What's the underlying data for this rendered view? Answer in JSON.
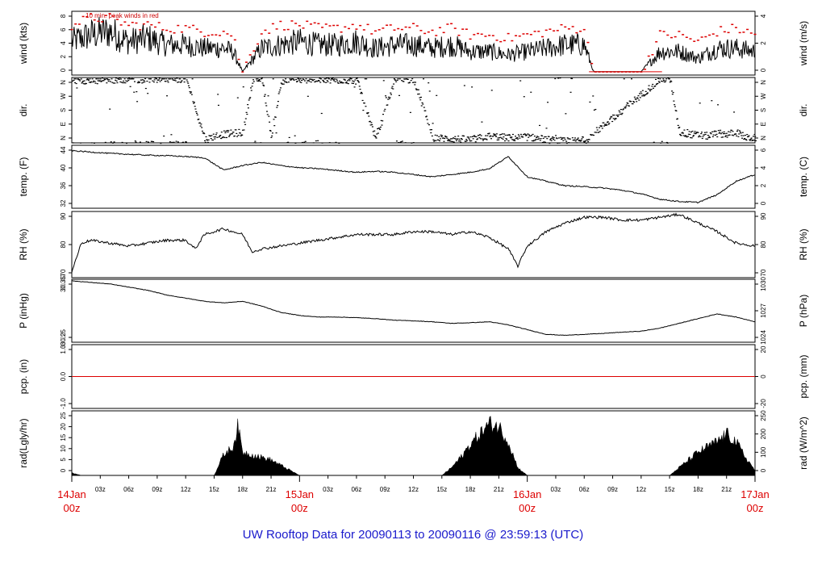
{
  "footer": {
    "text": "UW Rooftop Data for 20090113  to  20090116 @ 23:59:13  (UTC)",
    "color": "#1a1acc"
  },
  "colors": {
    "series": "#000000",
    "peak": "#dd0000",
    "zero_line": "#dd0000",
    "day_labels": "#dd0000"
  },
  "chart_data": [
    {
      "type": "line",
      "panel": "wind",
      "ylabel_left": "wind (kts)",
      "ylabel_right": "wind (m/s)",
      "annotation": "10 min. peak winds in red",
      "ylim": [
        -0.5,
        9
      ],
      "left_ticks": [
        "0",
        "2",
        "4",
        "6",
        "8"
      ],
      "right_ticks": [
        "0",
        "2",
        "4"
      ],
      "x_hours": [
        0,
        2,
        4,
        6,
        8,
        10,
        12,
        14,
        16,
        17,
        18,
        20,
        22,
        24,
        26,
        28,
        30,
        32,
        34,
        36,
        38,
        40,
        42,
        44,
        46,
        48,
        50,
        52,
        54,
        55,
        56,
        58,
        60,
        62,
        64,
        66,
        68,
        70,
        72
      ],
      "series": [
        {
          "values": [
            4.5,
            5.5,
            6,
            4.5,
            5,
            4,
            4,
            3.5,
            3.5,
            3,
            0,
            3.5,
            4,
            4.5,
            4,
            4,
            4.5,
            3.5,
            4,
            4,
            3.5,
            4,
            3,
            3,
            2.5,
            3,
            3.5,
            4,
            4,
            0,
            0,
            0,
            0,
            3,
            3,
            2,
            3.5,
            3.5,
            3
          ]
        },
        {
          "name": "10 min. peak",
          "values": [
            7,
            8,
            8,
            7,
            7,
            6.5,
            6.5,
            6,
            6,
            5.5,
            0,
            6,
            7,
            7,
            6.5,
            6.5,
            7,
            6,
            6.5,
            6.5,
            6,
            6.5,
            5.5,
            5.5,
            5,
            5.5,
            6,
            6.5,
            6.5,
            0,
            0,
            0,
            0,
            5.5,
            5.5,
            4.5,
            6,
            6.5,
            5.5
          ]
        }
      ]
    },
    {
      "type": "scatter",
      "panel": "dir",
      "ylabel_left": "dir.",
      "ylabel_right": "dir.",
      "left_ticks": [
        "N",
        "E",
        "S",
        "W",
        "N"
      ],
      "right_ticks": [
        "N",
        "E",
        "S",
        "W",
        "N"
      ],
      "ylim": [
        0,
        360
      ],
      "x_hours": [
        0,
        2,
        4,
        6,
        8,
        10,
        12,
        14,
        15,
        16,
        17,
        18,
        19,
        20,
        21,
        22,
        24,
        26,
        28,
        30,
        32,
        34,
        36,
        38,
        40,
        42,
        44,
        46,
        48,
        50,
        52,
        54,
        62,
        63,
        64,
        65,
        66,
        67,
        68,
        69,
        70,
        71
      ],
      "values": [
        350,
        345,
        350,
        355,
        350,
        355,
        355,
        20,
        40,
        50,
        55,
        60,
        355,
        350,
        30,
        345,
        350,
        355,
        350,
        345,
        20,
        355,
        350,
        30,
        25,
        20,
        40,
        30,
        35,
        20,
        10,
        15,
        355,
        350,
        60,
        50,
        45,
        40,
        55,
        50,
        60,
        30
      ]
    },
    {
      "type": "line",
      "panel": "temp",
      "ylabel_left": "temp. (F)",
      "ylabel_right": "temp. (C)",
      "left_ticks": [
        "32",
        "36",
        "40",
        "44"
      ],
      "right_ticks": [
        "0",
        "2",
        "4",
        "6"
      ],
      "ylim": [
        32,
        46
      ],
      "x_hours": [
        0,
        2,
        4,
        6,
        8,
        10,
        12,
        14,
        16,
        18,
        20,
        22,
        24,
        26,
        28,
        30,
        32,
        34,
        36,
        38,
        40,
        42,
        44,
        46,
        48,
        50,
        52,
        54,
        56,
        58,
        60,
        62,
        64,
        66,
        68,
        70,
        72
      ],
      "series": [
        {
          "values": [
            44.8,
            44.5,
            44.2,
            44.0,
            43.8,
            43.7,
            43.5,
            43.2,
            40.5,
            41.5,
            42.2,
            41.5,
            41.0,
            40.8,
            40.4,
            40.0,
            40.2,
            40.0,
            39.5,
            39.0,
            39.5,
            40.0,
            40.8,
            43.5,
            39.0,
            38.0,
            37.0,
            36.8,
            36.5,
            36.0,
            35.2,
            34.0,
            33.5,
            33.3,
            35.0,
            38.0,
            39.5
          ]
        }
      ]
    },
    {
      "type": "line",
      "panel": "rh",
      "ylabel_left": "RH (%)",
      "ylabel_right": "RH (%)",
      "left_ticks": [
        "70",
        "80",
        "90"
      ],
      "right_ticks": [
        "70",
        "80",
        "90"
      ],
      "ylim": [
        69,
        92
      ],
      "x_hours": [
        0,
        1,
        2,
        4,
        6,
        8,
        10,
        12,
        13,
        14,
        16,
        18,
        19,
        20,
        22,
        24,
        26,
        28,
        30,
        32,
        34,
        36,
        38,
        40,
        42,
        44,
        46,
        47,
        48,
        50,
        52,
        54,
        56,
        58,
        60,
        62,
        64,
        66,
        68,
        70,
        72
      ],
      "series": [
        {
          "values": [
            71,
            81,
            82,
            81,
            80,
            81,
            82,
            82,
            79,
            84,
            86,
            84,
            78,
            79,
            80,
            81,
            82,
            83,
            84,
            84,
            84,
            85,
            85,
            84,
            85,
            83,
            79,
            73,
            80,
            85,
            88,
            90,
            90,
            89,
            89,
            90,
            91,
            88,
            85,
            81,
            80
          ]
        }
      ]
    },
    {
      "type": "line",
      "panel": "pressure",
      "ylabel_left": "P (inHg)",
      "ylabel_right": "P (hPa)",
      "left_ticks": [
        "30.25",
        "30.35"
      ],
      "left_ticks_overprinted": [
        "30.20",
        "30.40"
      ],
      "right_ticks": [
        "1024",
        "1027",
        "1030"
      ],
      "ylim": [
        30.2,
        30.4
      ],
      "x_hours": [
        0,
        2,
        4,
        6,
        8,
        10,
        12,
        14,
        16,
        18,
        20,
        22,
        24,
        26,
        28,
        30,
        32,
        34,
        36,
        38,
        40,
        42,
        44,
        46,
        48,
        50,
        52,
        54,
        56,
        58,
        60,
        62,
        64,
        66,
        68,
        70,
        72
      ],
      "series": [
        {
          "values": [
            30.395,
            30.39,
            30.385,
            30.375,
            30.365,
            30.35,
            30.34,
            30.33,
            30.325,
            30.33,
            30.315,
            30.295,
            30.285,
            30.28,
            30.28,
            30.278,
            30.275,
            30.27,
            30.268,
            30.265,
            30.26,
            30.262,
            30.265,
            30.255,
            30.24,
            30.225,
            30.222,
            30.225,
            30.228,
            30.232,
            30.235,
            30.245,
            30.26,
            30.275,
            30.29,
            30.28,
            30.265
          ]
        }
      ]
    },
    {
      "type": "line",
      "panel": "precip",
      "ylabel_left": "pcp. (in)",
      "ylabel_right": "pcp. (mm)",
      "left_ticks": [
        "-1.0",
        "0.0",
        "1.0"
      ],
      "right_ticks": [
        "-20",
        "0",
        "20"
      ],
      "ylim": [
        -1.4,
        1.4
      ],
      "series": [
        {
          "values": [
            0,
            0
          ]
        }
      ],
      "x_hours": [
        0,
        72
      ]
    },
    {
      "type": "area",
      "panel": "radiation",
      "ylabel_left": "rad(Lgly/hr)",
      "ylabel_right": "rad (W/m^2)",
      "left_ticks": [
        "0",
        "5",
        "10",
        "15",
        "20",
        "25"
      ],
      "right_ticks": [
        "0",
        "100",
        "200",
        "250"
      ],
      "ylim": [
        0,
        25
      ],
      "x_hours": [
        0,
        1,
        15,
        16,
        17,
        17.5,
        18,
        19,
        20,
        21,
        22,
        23,
        24,
        39,
        40,
        41,
        42,
        43,
        44,
        45,
        46,
        47,
        48,
        63,
        64,
        65,
        66,
        67,
        68,
        69,
        70,
        71,
        72
      ],
      "series": [
        {
          "values": [
            1,
            0,
            0,
            8,
            11,
            19,
            9,
            8,
            7,
            6,
            4,
            2,
            0,
            0,
            3,
            7,
            12,
            16,
            20,
            19,
            13,
            3,
            0,
            0,
            3,
            6,
            9,
            11,
            13,
            16,
            13,
            7,
            2
          ]
        }
      ]
    }
  ],
  "x_axis": {
    "hour_labels": [
      "03z",
      "06z",
      "09z",
      "12z",
      "15z",
      "18z",
      "21z"
    ],
    "day_labels": [
      {
        "date": "14Jan",
        "time": "00z",
        "hour": 0
      },
      {
        "date": "15Jan",
        "time": "00z",
        "hour": 24
      },
      {
        "date": "16Jan",
        "time": "00z",
        "hour": 48
      },
      {
        "date": "17Jan",
        "time": "00z",
        "hour": 72
      }
    ]
  }
}
